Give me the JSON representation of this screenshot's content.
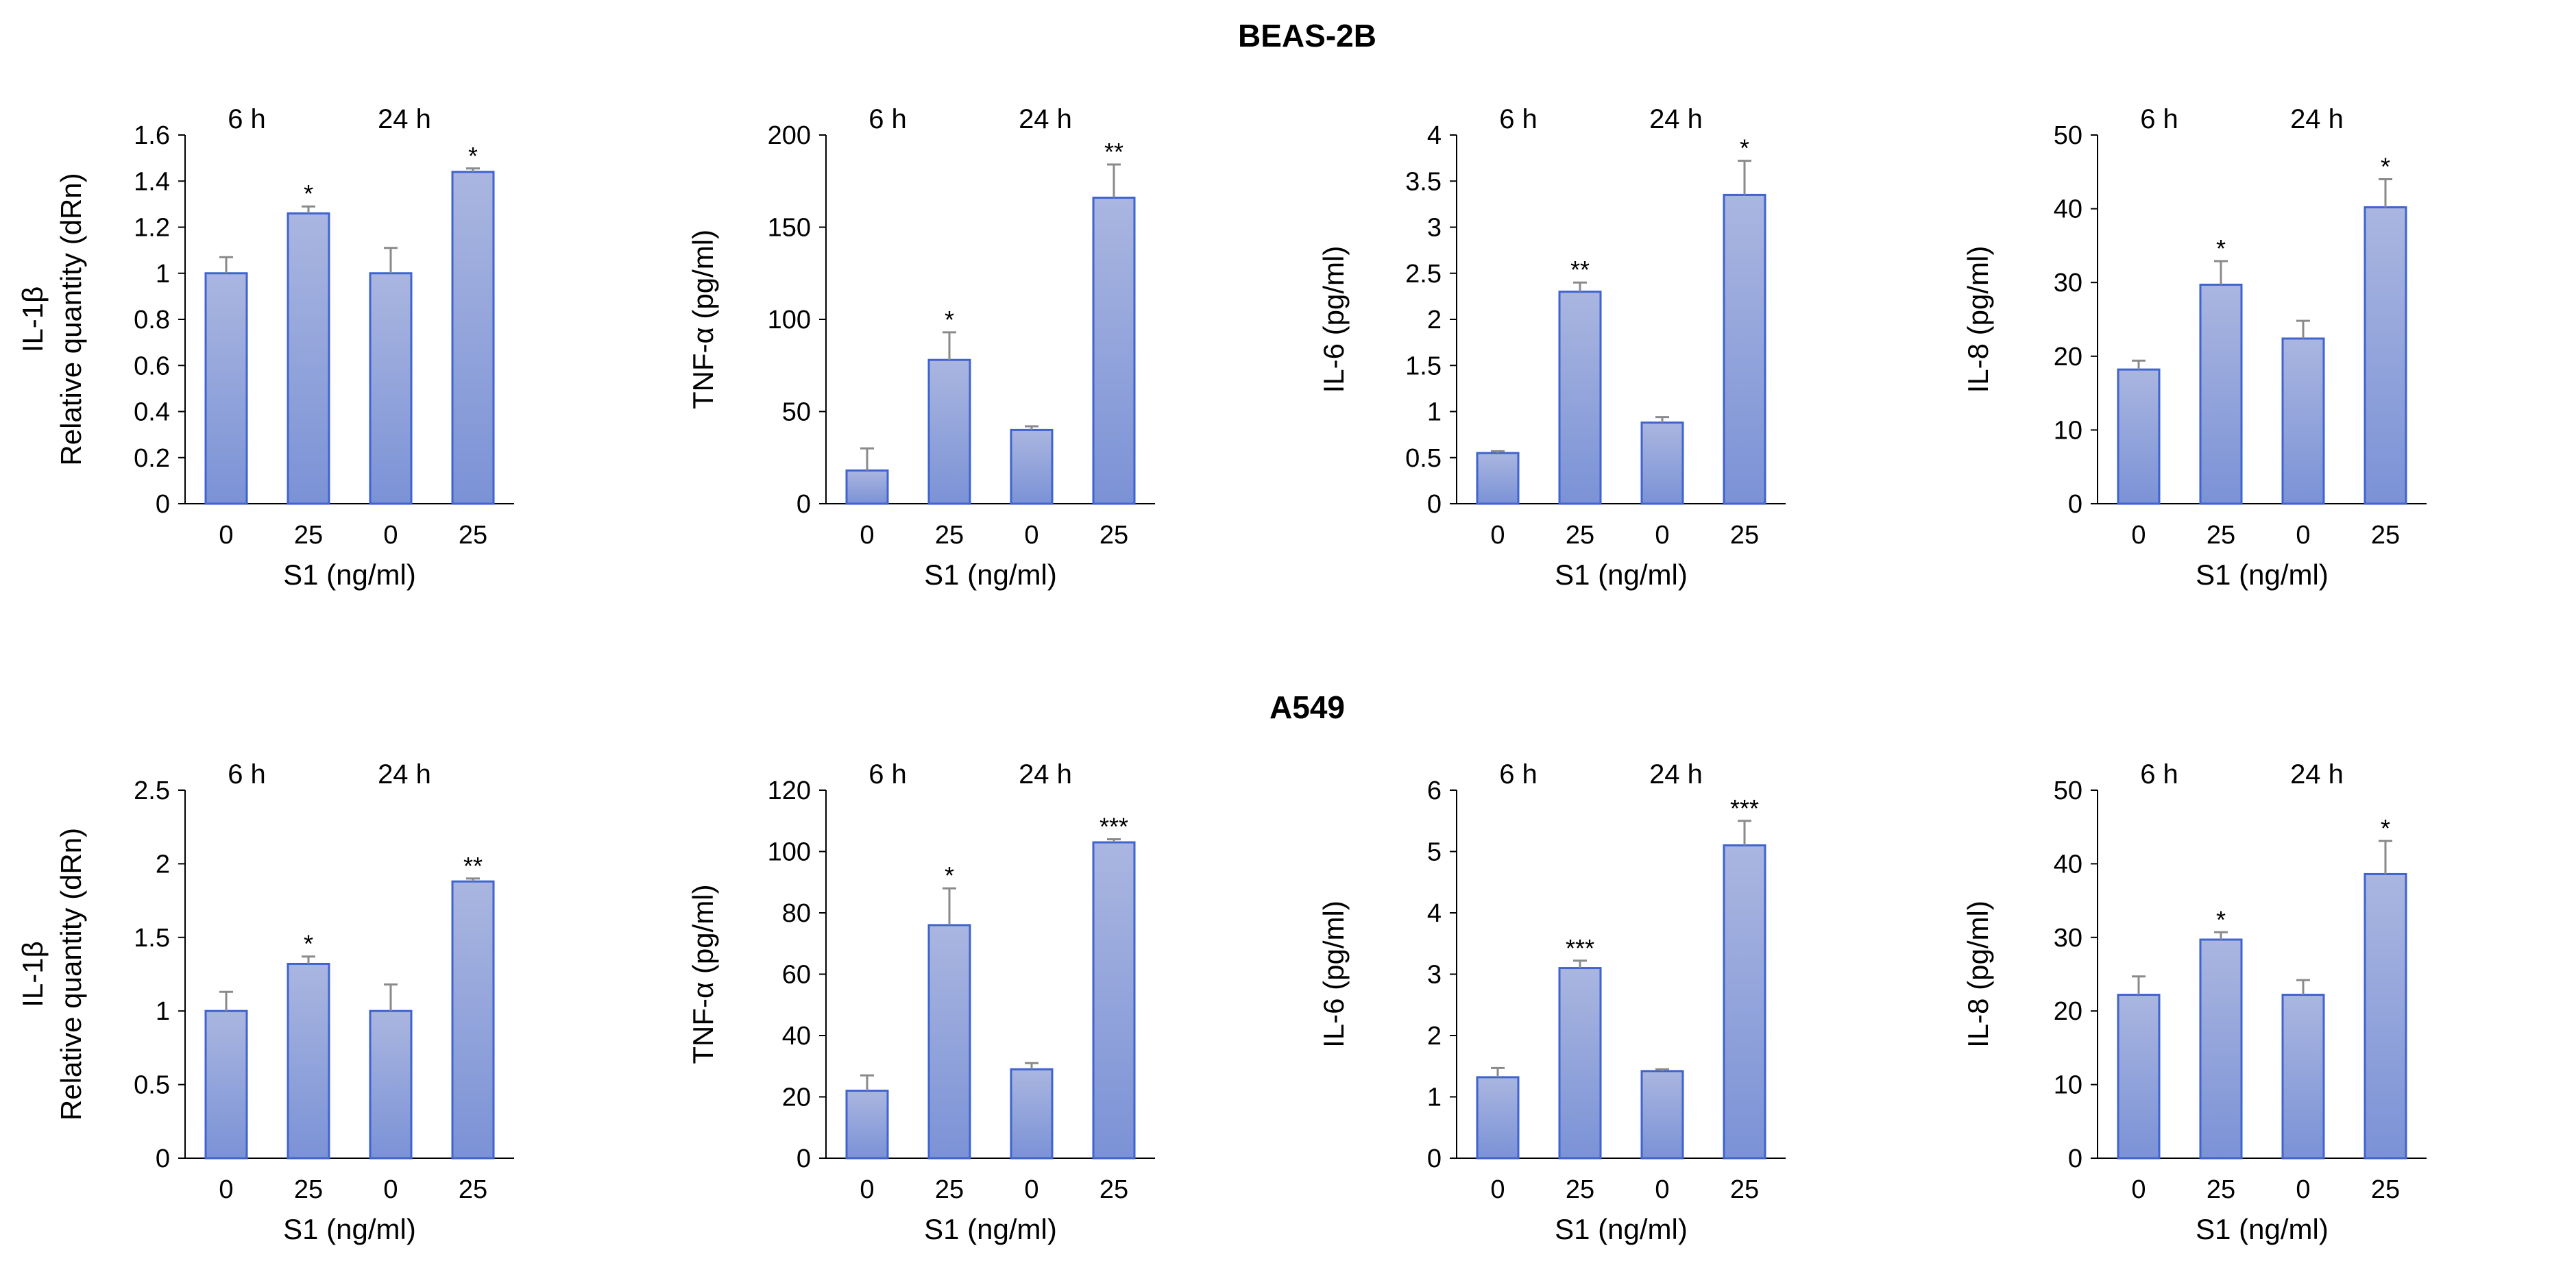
{
  "figure": {
    "panel_groups": [
      {
        "title": "BEAS-2B",
        "charts": [
          {
            "type": "bar",
            "ylabel_lines": [
              "IL-1β",
              "Relative quantity (dRn)"
            ],
            "xlabel": "S1 (ng/ml)",
            "ylim": [
              0,
              1.6
            ],
            "yticks": [
              0,
              0.2,
              0.4,
              0.6,
              0.8,
              1,
              1.2,
              1.4,
              1.6
            ],
            "categories": [
              "0",
              "25",
              "0",
              "25"
            ],
            "groups": [
              "6 h",
              "24 h"
            ],
            "values": [
              1.0,
              1.26,
              1.0,
              1.44
            ],
            "errors": [
              0.07,
              0.03,
              0.11,
              0.015
            ],
            "significance": [
              "",
              "*",
              "",
              "*"
            ]
          },
          {
            "type": "bar",
            "ylabel_lines": [
              "TNF-α (pg/ml)"
            ],
            "xlabel": "S1 (ng/ml)",
            "ylim": [
              0,
              200
            ],
            "yticks": [
              0,
              50,
              100,
              150,
              200
            ],
            "categories": [
              "0",
              "25",
              "0",
              "25"
            ],
            "groups": [
              "6 h",
              "24 h"
            ],
            "values": [
              18,
              78,
              40,
              166
            ],
            "errors": [
              12,
              15,
              2,
              18
            ],
            "significance": [
              "",
              "*",
              "",
              "**"
            ]
          },
          {
            "type": "bar",
            "ylabel_lines": [
              "IL-6 (pg/ml)"
            ],
            "xlabel": "S1 (ng/ml)",
            "ylim": [
              0,
              4
            ],
            "yticks": [
              0,
              0.5,
              1,
              1.5,
              2,
              2.5,
              3,
              3.5,
              4
            ],
            "categories": [
              "0",
              "25",
              "0",
              "25"
            ],
            "groups": [
              "6 h",
              "24 h"
            ],
            "values": [
              0.55,
              2.3,
              0.88,
              3.35
            ],
            "errors": [
              0.02,
              0.1,
              0.06,
              0.37
            ],
            "significance": [
              "",
              "**",
              "",
              "*"
            ]
          },
          {
            "type": "bar",
            "ylabel_lines": [
              "IL-8 (pg/ml)"
            ],
            "xlabel": "S1 (ng/ml)",
            "ylim": [
              0,
              50
            ],
            "yticks": [
              0,
              10,
              20,
              30,
              40,
              50
            ],
            "categories": [
              "0",
              "25",
              "0",
              "25"
            ],
            "groups": [
              "6 h",
              "24 h"
            ],
            "values": [
              18.2,
              29.7,
              22.4,
              40.2
            ],
            "errors": [
              1.2,
              3.2,
              2.4,
              3.8
            ],
            "significance": [
              "",
              "*",
              "",
              "*"
            ]
          }
        ]
      },
      {
        "title": "A549",
        "charts": [
          {
            "type": "bar",
            "ylabel_lines": [
              "IL-1β",
              "Relative quantity (dRn)"
            ],
            "xlabel": "S1 (ng/ml)",
            "ylim": [
              0,
              2.5
            ],
            "yticks": [
              0,
              0.5,
              1,
              1.5,
              2,
              2.5
            ],
            "categories": [
              "0",
              "25",
              "0",
              "25"
            ],
            "groups": [
              "6 h",
              "24 h"
            ],
            "values": [
              1.0,
              1.32,
              1.0,
              1.88
            ],
            "errors": [
              0.13,
              0.05,
              0.18,
              0.02
            ],
            "significance": [
              "",
              "*",
              "",
              "**"
            ]
          },
          {
            "type": "bar",
            "ylabel_lines": [
              "TNF-α (pg/ml)"
            ],
            "xlabel": "S1 (ng/ml)",
            "ylim": [
              0,
              120
            ],
            "yticks": [
              0,
              20,
              40,
              60,
              80,
              100,
              120
            ],
            "categories": [
              "0",
              "25",
              "0",
              "25"
            ],
            "groups": [
              "6 h",
              "24 h"
            ],
            "values": [
              22,
              76,
              29,
              103
            ],
            "errors": [
              5,
              12,
              2,
              1
            ],
            "significance": [
              "",
              "*",
              "",
              "***"
            ]
          },
          {
            "type": "bar",
            "ylabel_lines": [
              "IL-6 (pg/ml)"
            ],
            "xlabel": "S1 (ng/ml)",
            "ylim": [
              0,
              6
            ],
            "yticks": [
              0,
              1,
              2,
              3,
              4,
              5,
              6
            ],
            "categories": [
              "0",
              "25",
              "0",
              "25"
            ],
            "groups": [
              "6 h",
              "24 h"
            ],
            "values": [
              1.32,
              3.1,
              1.42,
              5.1
            ],
            "errors": [
              0.15,
              0.12,
              0.03,
              0.4
            ],
            "significance": [
              "",
              "***",
              "",
              "***"
            ]
          },
          {
            "type": "bar",
            "ylabel_lines": [
              "IL-8 (pg/ml)"
            ],
            "xlabel": "S1 (ng/ml)",
            "ylim": [
              0,
              50
            ],
            "yticks": [
              0,
              10,
              20,
              30,
              40,
              50
            ],
            "categories": [
              "0",
              "25",
              "0",
              "25"
            ],
            "groups": [
              "6 h",
              "24 h"
            ],
            "values": [
              22.2,
              29.7,
              22.2,
              38.6
            ],
            "errors": [
              2.5,
              1.0,
              2.0,
              4.5
            ],
            "significance": [
              "",
              "*",
              "",
              "*"
            ]
          }
        ]
      }
    ]
  },
  "style": {
    "bar_fill_top": "#aab6e0",
    "bar_fill_bottom": "#7b92d6",
    "bar_stroke": "#3f63cf",
    "error_color": "#8a8a8a",
    "axis_color": "#000000"
  }
}
